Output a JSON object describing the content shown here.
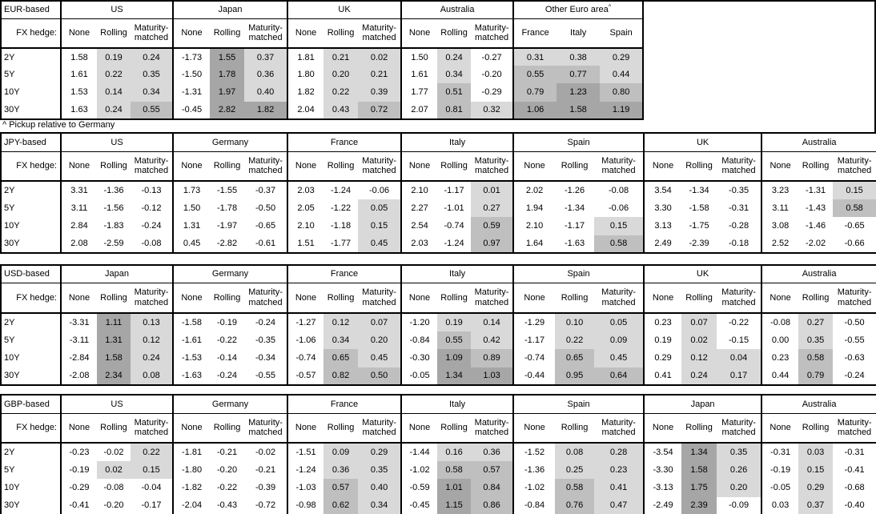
{
  "footnote": "^ Pickup relative to Germany",
  "hedge_label": "FX hedge:",
  "hedge_cols": [
    "None",
    "Rolling",
    "Maturity-matched"
  ],
  "tenors": [
    "2Y",
    "5Y",
    "10Y",
    "30Y"
  ],
  "colors": {
    "shade_light": "#d9d9d9",
    "shade_medium": "#bfbfbf",
    "shade_dark": "#a6a6a6",
    "border": "#000000"
  },
  "tables": [
    {
      "base": "EUR-based",
      "groups": [
        {
          "name": "US",
          "rows": [
            [
              "1.58",
              "0.19",
              "0.24"
            ],
            [
              "1.61",
              "0.22",
              "0.35"
            ],
            [
              "1.53",
              "0.14",
              "0.34"
            ],
            [
              "1.63",
              "0.24",
              "0.55"
            ]
          ]
        },
        {
          "name": "Japan",
          "rows": [
            [
              "-1.73",
              "1.55",
              "0.37"
            ],
            [
              "-1.50",
              "1.78",
              "0.36"
            ],
            [
              "-1.31",
              "1.97",
              "0.40"
            ],
            [
              "-0.45",
              "2.82",
              "1.82"
            ]
          ]
        },
        {
          "name": "UK",
          "rows": [
            [
              "1.81",
              "0.21",
              "0.02"
            ],
            [
              "1.80",
              "0.20",
              "0.21"
            ],
            [
              "1.82",
              "0.22",
              "0.39"
            ],
            [
              "2.04",
              "0.43",
              "0.72"
            ]
          ]
        },
        {
          "name": "Australia",
          "rows": [
            [
              "1.50",
              "0.24",
              "-0.27"
            ],
            [
              "1.61",
              "0.34",
              "-0.20"
            ],
            [
              "1.77",
              "0.51",
              "-0.29"
            ],
            [
              "2.07",
              "0.81",
              "0.32"
            ]
          ]
        },
        {
          "name": "Other Euro area",
          "sup": "^",
          "cols": [
            "France",
            "Italy",
            "Spain"
          ],
          "shade_all": true,
          "rows": [
            [
              "0.31",
              "0.38",
              "0.29"
            ],
            [
              "0.55",
              "0.77",
              "0.44"
            ],
            [
              "0.79",
              "1.23",
              "0.80"
            ],
            [
              "1.06",
              "1.58",
              "1.19"
            ]
          ]
        }
      ]
    },
    {
      "base": "JPY-based",
      "groups": [
        {
          "name": "US",
          "rows": [
            [
              "3.31",
              "-1.36",
              "-0.13"
            ],
            [
              "3.11",
              "-1.56",
              "-0.12"
            ],
            [
              "2.84",
              "-1.83",
              "-0.24"
            ],
            [
              "2.08",
              "-2.59",
              "-0.08"
            ]
          ]
        },
        {
          "name": "Germany",
          "rows": [
            [
              "1.73",
              "-1.55",
              "-0.37"
            ],
            [
              "1.50",
              "-1.78",
              "-0.50"
            ],
            [
              "1.31",
              "-1.97",
              "-0.65"
            ],
            [
              "0.45",
              "-2.82",
              "-0.61"
            ]
          ]
        },
        {
          "name": "France",
          "rows": [
            [
              "2.03",
              "-1.24",
              "-0.06"
            ],
            [
              "2.05",
              "-1.22",
              "0.05"
            ],
            [
              "2.10",
              "-1.18",
              "0.15"
            ],
            [
              "1.51",
              "-1.77",
              "0.45"
            ]
          ]
        },
        {
          "name": "Italy",
          "rows": [
            [
              "2.10",
              "-1.17",
              "0.01"
            ],
            [
              "2.27",
              "-1.01",
              "0.27"
            ],
            [
              "2.54",
              "-0.74",
              "0.59"
            ],
            [
              "2.03",
              "-1.24",
              "0.97"
            ]
          ]
        },
        {
          "name": "Spain",
          "rows": [
            [
              "2.02",
              "-1.26",
              "-0.08"
            ],
            [
              "1.94",
              "-1.34",
              "-0.06"
            ],
            [
              "2.10",
              "-1.17",
              "0.15"
            ],
            [
              "1.64",
              "-1.63",
              "0.58"
            ]
          ]
        },
        {
          "name": "UK",
          "rows": [
            [
              "3.54",
              "-1.34",
              "-0.35"
            ],
            [
              "3.30",
              "-1.58",
              "-0.31"
            ],
            [
              "3.13",
              "-1.75",
              "-0.28"
            ],
            [
              "2.49",
              "-2.39",
              "-0.18"
            ]
          ]
        },
        {
          "name": "Australia",
          "rows": [
            [
              "3.23",
              "-1.31",
              "0.15"
            ],
            [
              "3.11",
              "-1.43",
              "0.58"
            ],
            [
              "3.08",
              "-1.46",
              "-0.65"
            ],
            [
              "2.52",
              "-2.02",
              "-0.66"
            ]
          ]
        }
      ]
    },
    {
      "base": "USD-based",
      "groups": [
        {
          "name": "Japan",
          "rows": [
            [
              "-3.31",
              "1.11",
              "0.13"
            ],
            [
              "-3.11",
              "1.31",
              "0.12"
            ],
            [
              "-2.84",
              "1.58",
              "0.24"
            ],
            [
              "-2.08",
              "2.34",
              "0.08"
            ]
          ]
        },
        {
          "name": "Germany",
          "rows": [
            [
              "-1.58",
              "-0.19",
              "-0.24"
            ],
            [
              "-1.61",
              "-0.22",
              "-0.35"
            ],
            [
              "-1.53",
              "-0.14",
              "-0.34"
            ],
            [
              "-1.63",
              "-0.24",
              "-0.55"
            ]
          ]
        },
        {
          "name": "France",
          "rows": [
            [
              "-1.27",
              "0.12",
              "0.07"
            ],
            [
              "-1.06",
              "0.34",
              "0.20"
            ],
            [
              "-0.74",
              "0.65",
              "0.45"
            ],
            [
              "-0.57",
              "0.82",
              "0.50"
            ]
          ]
        },
        {
          "name": "Italy",
          "rows": [
            [
              "-1.20",
              "0.19",
              "0.14"
            ],
            [
              "-0.84",
              "0.55",
              "0.42"
            ],
            [
              "-0.30",
              "1.09",
              "0.89"
            ],
            [
              "-0.05",
              "1.34",
              "1.03"
            ]
          ]
        },
        {
          "name": "Spain",
          "rows": [
            [
              "-1.29",
              "0.10",
              "0.05"
            ],
            [
              "-1.17",
              "0.22",
              "0.09"
            ],
            [
              "-0.74",
              "0.65",
              "0.45"
            ],
            [
              "-0.44",
              "0.95",
              "0.64"
            ]
          ]
        },
        {
          "name": "UK",
          "rows": [
            [
              "0.23",
              "0.07",
              "-0.22"
            ],
            [
              "0.19",
              "0.02",
              "-0.15"
            ],
            [
              "0.29",
              "0.12",
              "0.04"
            ],
            [
              "0.41",
              "0.24",
              "0.17"
            ]
          ]
        },
        {
          "name": "Australia",
          "rows": [
            [
              "-0.08",
              "0.27",
              "-0.50"
            ],
            [
              "0.00",
              "0.35",
              "-0.55"
            ],
            [
              "0.23",
              "0.58",
              "-0.63"
            ],
            [
              "0.44",
              "0.79",
              "-0.24"
            ]
          ]
        }
      ]
    },
    {
      "base": "GBP-based",
      "groups": [
        {
          "name": "US",
          "rows": [
            [
              "-0.23",
              "-0.02",
              "0.22"
            ],
            [
              "-0.19",
              "0.02",
              "0.15"
            ],
            [
              "-0.29",
              "-0.08",
              "-0.04"
            ],
            [
              "-0.41",
              "-0.20",
              "-0.17"
            ]
          ]
        },
        {
          "name": "Germany",
          "rows": [
            [
              "-1.81",
              "-0.21",
              "-0.02"
            ],
            [
              "-1.80",
              "-0.20",
              "-0.21"
            ],
            [
              "-1.82",
              "-0.22",
              "-0.39"
            ],
            [
              "-2.04",
              "-0.43",
              "-0.72"
            ]
          ]
        },
        {
          "name": "France",
          "rows": [
            [
              "-1.51",
              "0.09",
              "0.29"
            ],
            [
              "-1.24",
              "0.36",
              "0.35"
            ],
            [
              "-1.03",
              "0.57",
              "0.40"
            ],
            [
              "-0.98",
              "0.62",
              "0.34"
            ]
          ]
        },
        {
          "name": "Italy",
          "rows": [
            [
              "-1.44",
              "0.16",
              "0.36"
            ],
            [
              "-1.02",
              "0.58",
              "0.57"
            ],
            [
              "-0.59",
              "1.01",
              "0.84"
            ],
            [
              "-0.45",
              "1.15",
              "0.86"
            ]
          ]
        },
        {
          "name": "Spain",
          "rows": [
            [
              "-1.52",
              "0.08",
              "0.28"
            ],
            [
              "-1.36",
              "0.25",
              "0.23"
            ],
            [
              "-1.02",
              "0.58",
              "0.41"
            ],
            [
              "-0.84",
              "0.76",
              "0.47"
            ]
          ]
        },
        {
          "name": "Japan",
          "rows": [
            [
              "-3.54",
              "1.34",
              "0.35"
            ],
            [
              "-3.30",
              "1.58",
              "0.26"
            ],
            [
              "-3.13",
              "1.75",
              "0.20"
            ],
            [
              "-2.49",
              "2.39",
              "-0.09"
            ]
          ]
        },
        {
          "name": "Australia",
          "rows": [
            [
              "-0.31",
              "0.03",
              "-0.31"
            ],
            [
              "-0.19",
              "0.15",
              "-0.41"
            ],
            [
              "-0.05",
              "0.29",
              "-0.68"
            ],
            [
              "0.03",
              "0.37",
              "-0.40"
            ]
          ]
        }
      ]
    }
  ]
}
